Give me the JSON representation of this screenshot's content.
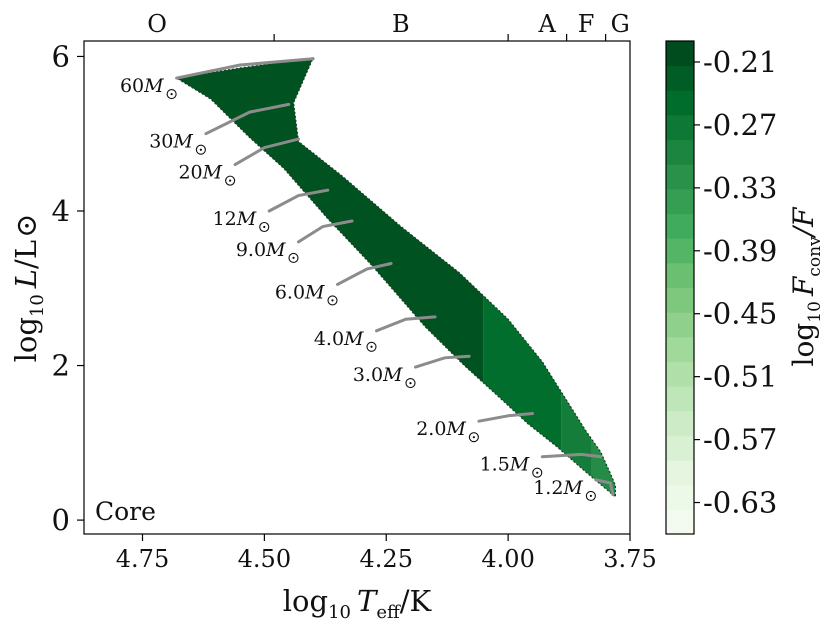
{
  "chart_data": {
    "type": "heatmap",
    "title": "",
    "xlabel": "log₁₀ T_eff/K",
    "ylabel": "log₁₀ L/L⊙",
    "xlabel_parts": {
      "pre": "log",
      "sub": "10",
      "var": "T",
      "varsub": "eff",
      "post": "/K"
    },
    "ylabel_parts": {
      "pre": "log",
      "sub": "10",
      "var": "L",
      "post": "/L"
    },
    "xlim": [
      4.87,
      3.75
    ],
    "ylim": [
      -0.18,
      6.2
    ],
    "x_reversed": true,
    "xticks": [
      4.75,
      4.5,
      4.25,
      4.0,
      3.75
    ],
    "xtick_labels": [
      "4.75",
      "4.50",
      "4.25",
      "4.00",
      "3.75"
    ],
    "yticks": [
      0,
      2,
      4,
      6
    ],
    "ytick_labels": [
      "0",
      "2",
      "4",
      "6"
    ],
    "spectral_types": [
      {
        "label": "O",
        "x": 4.72
      },
      {
        "label": "B",
        "x": 4.22
      },
      {
        "label": "A",
        "x": 3.92
      },
      {
        "label": "F",
        "x": 3.84
      },
      {
        "label": "G",
        "x": 3.77
      }
    ],
    "spectral_boundaries": [
      4.48,
      4.0,
      3.88,
      3.8
    ],
    "panel_label": "Core",
    "colorbar": {
      "label": "log₁₀ F_conv/F",
      "label_parts": {
        "pre": "log",
        "sub": "10",
        "var": "F",
        "varsub": "conv",
        "post": "/F"
      },
      "min": -0.66,
      "max": -0.19,
      "ticks": [
        -0.21,
        -0.27,
        -0.33,
        -0.39,
        -0.45,
        -0.51,
        -0.57,
        -0.63
      ],
      "tick_labels": [
        "-0.21",
        "-0.27",
        "-0.33",
        "-0.39",
        "-0.45",
        "-0.51",
        "-0.57",
        "-0.63"
      ],
      "colors": [
        "#f7fcf5",
        "#e5f5e0",
        "#c7e9c0",
        "#a1d99b",
        "#74c476",
        "#41ab5d",
        "#238b45",
        "#006d2c",
        "#00441b"
      ]
    },
    "region": {
      "upper_edge": [
        [
          4.68,
          5.72
        ],
        [
          4.55,
          5.85
        ],
        [
          4.4,
          5.98
        ],
        [
          4.44,
          5.4
        ],
        [
          4.43,
          4.9
        ],
        [
          4.34,
          4.45
        ],
        [
          4.22,
          3.8
        ],
        [
          4.1,
          3.2
        ],
        [
          4.0,
          2.6
        ],
        [
          3.93,
          2.05
        ],
        [
          3.88,
          1.55
        ],
        [
          3.84,
          1.15
        ],
        [
          3.81,
          0.88
        ],
        [
          3.79,
          0.6
        ],
        [
          3.78,
          0.45
        ]
      ],
      "lower_edge": [
        [
          3.78,
          0.3
        ],
        [
          3.84,
          0.62
        ],
        [
          3.9,
          0.95
        ],
        [
          3.96,
          1.25
        ],
        [
          4.02,
          1.6
        ],
        [
          4.09,
          2.0
        ],
        [
          4.17,
          2.5
        ],
        [
          4.28,
          3.3
        ],
        [
          4.37,
          3.9
        ],
        [
          4.46,
          4.55
        ],
        [
          4.53,
          4.95
        ],
        [
          4.61,
          5.45
        ],
        [
          4.68,
          5.72
        ]
      ],
      "value_bands": [
        {
          "x_from": 4.4,
          "value": -0.21
        },
        {
          "x_from": 4.05,
          "value": -0.25
        },
        {
          "x_from": 3.89,
          "value": -0.28
        },
        {
          "x_from": 3.83,
          "value": -0.31
        },
        {
          "x_from": 3.75,
          "value": -0.35
        }
      ]
    },
    "tracks": [
      {
        "label_pre": "60",
        "unit": "M",
        "points": [
          [
            4.68,
            5.72
          ],
          [
            4.55,
            5.89
          ],
          [
            4.4,
            5.97
          ]
        ]
      },
      {
        "label_pre": "30",
        "unit": "M",
        "points": [
          [
            4.62,
            5.0
          ],
          [
            4.53,
            5.28
          ],
          [
            4.45,
            5.38
          ]
        ]
      },
      {
        "label_pre": "20",
        "unit": "M",
        "points": [
          [
            4.56,
            4.6
          ],
          [
            4.5,
            4.82
          ],
          [
            4.43,
            4.93
          ]
        ]
      },
      {
        "label_pre": "12",
        "unit": "M",
        "points": [
          [
            4.49,
            4.0
          ],
          [
            4.43,
            4.2
          ],
          [
            4.37,
            4.27
          ]
        ]
      },
      {
        "label_pre": "9.0",
        "unit": "M",
        "points": [
          [
            4.43,
            3.6
          ],
          [
            4.38,
            3.8
          ],
          [
            4.32,
            3.87
          ]
        ]
      },
      {
        "label_pre": "6.0",
        "unit": "M",
        "points": [
          [
            4.35,
            3.05
          ],
          [
            4.29,
            3.25
          ],
          [
            4.24,
            3.32
          ]
        ]
      },
      {
        "label_pre": "4.0",
        "unit": "M",
        "points": [
          [
            4.27,
            2.45
          ],
          [
            4.21,
            2.6
          ],
          [
            4.15,
            2.63
          ]
        ]
      },
      {
        "label_pre": "3.0",
        "unit": "M",
        "points": [
          [
            4.19,
            1.98
          ],
          [
            4.13,
            2.1
          ],
          [
            4.08,
            2.12
          ]
        ]
      },
      {
        "label_pre": "2.0",
        "unit": "M",
        "points": [
          [
            4.06,
            1.28
          ],
          [
            4.0,
            1.35
          ],
          [
            3.95,
            1.38
          ]
        ]
      },
      {
        "label_pre": "1.5",
        "unit": "M",
        "points": [
          [
            3.93,
            0.82
          ],
          [
            3.85,
            0.85
          ],
          [
            3.81,
            0.82
          ]
        ]
      },
      {
        "label_pre": "1.2",
        "unit": "M",
        "points": [
          [
            3.82,
            0.52
          ],
          [
            3.79,
            0.48
          ],
          [
            3.785,
            0.33
          ]
        ]
      }
    ]
  }
}
